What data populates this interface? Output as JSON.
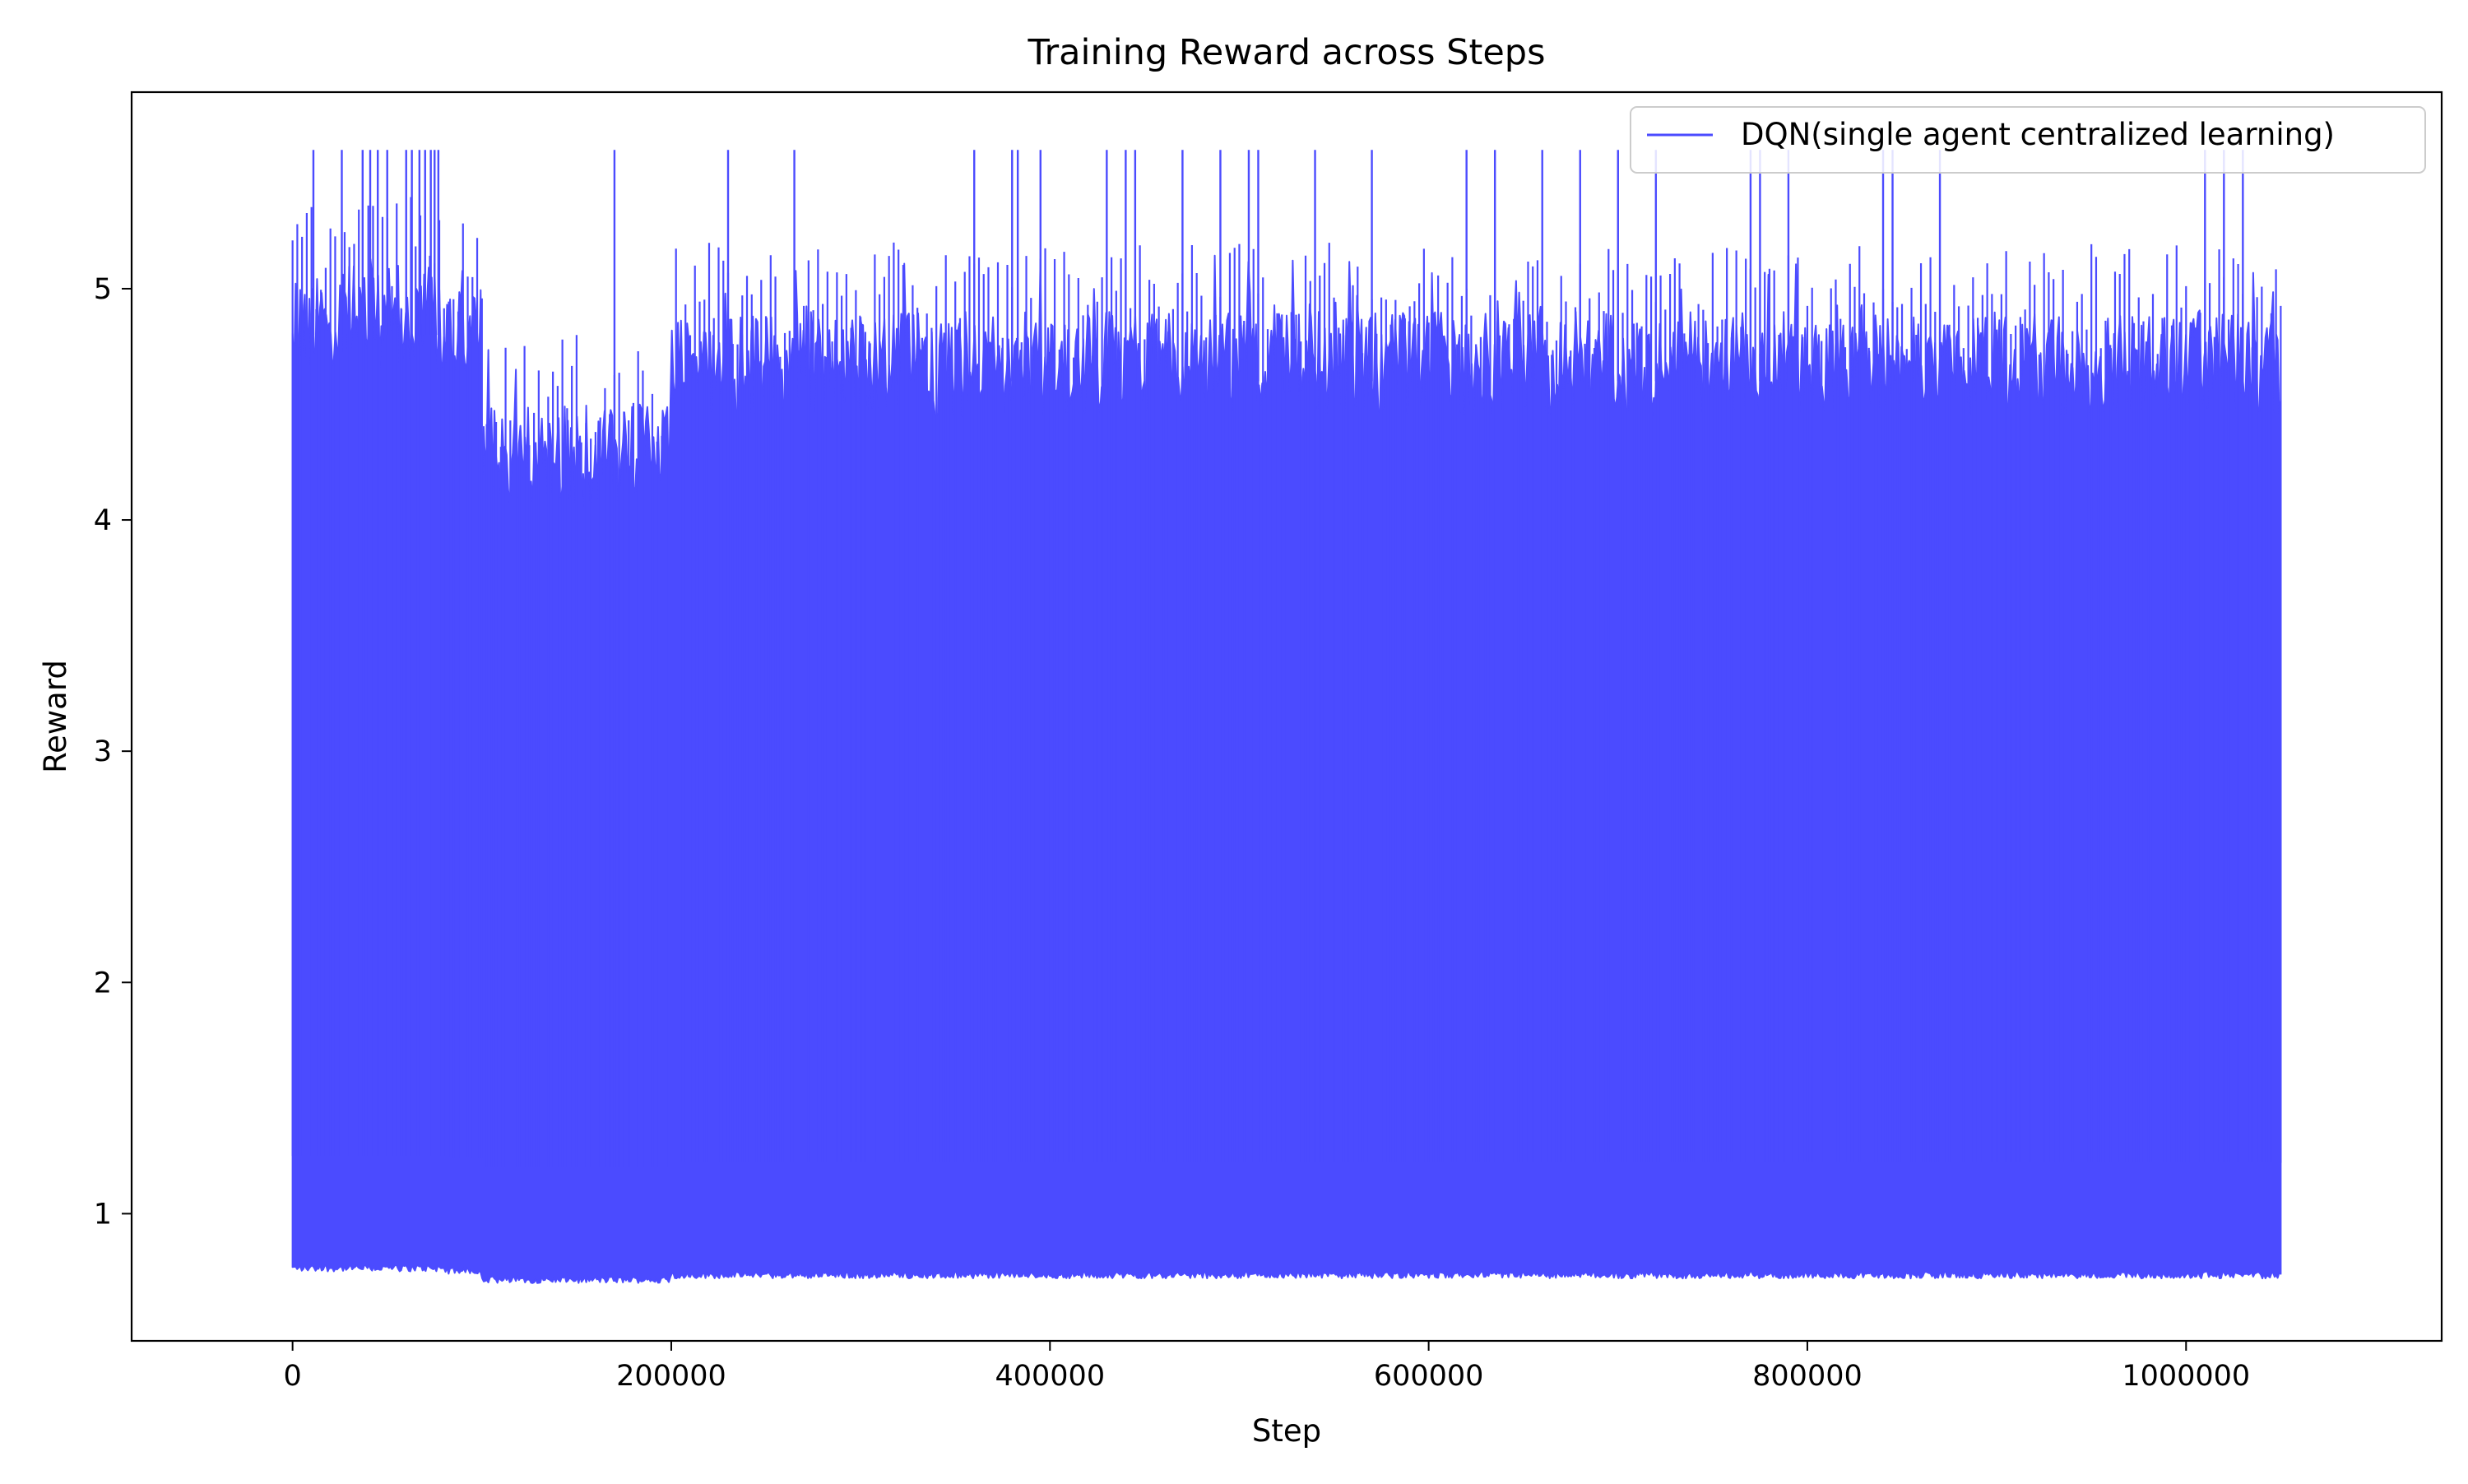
{
  "chart_data": {
    "type": "line",
    "title": "Training Reward across Steps",
    "xlabel": "Step",
    "ylabel": "Reward",
    "xlim": [
      -85000,
      1135000
    ],
    "ylim": [
      0.45,
      5.85
    ],
    "x_ticks": [
      0,
      200000,
      400000,
      600000,
      800000,
      1000000
    ],
    "x_tick_labels": [
      "0",
      "200000",
      "400000",
      "600000",
      "800000",
      "1000000"
    ],
    "y_ticks": [
      1,
      2,
      3,
      4,
      5
    ],
    "y_tick_labels": [
      "1",
      "2",
      "3",
      "4",
      "5"
    ],
    "grid": false,
    "legend_position": "top-right",
    "series": [
      {
        "name": "DQN(single agent centralized learning)",
        "color": "#4b4bff",
        "x_range": [
          0,
          1050000
        ],
        "band_segments": [
          {
            "x": [
              0,
              80000
            ],
            "lower": 0.75,
            "upper_typical": 5.1,
            "peak": 5.6
          },
          {
            "x": [
              80000,
              100000
            ],
            "lower": 0.74,
            "upper_typical": 5.0,
            "peak": 5.33
          },
          {
            "x": [
              100000,
              200000
            ],
            "lower": 0.7,
            "upper_typical": 4.5,
            "peak": 5.6
          },
          {
            "x": [
              200000,
              1050000
            ],
            "lower": 0.72,
            "upper_typical": 4.9,
            "peak": 5.6
          }
        ],
        "peak_steps": [
          11000,
          26000,
          37000,
          41000,
          45000,
          50000,
          60000,
          63000,
          67000,
          70000,
          73000,
          75000,
          77000,
          170000,
          230000,
          265000,
          360000,
          380000,
          383000,
          395000,
          430000,
          440000,
          445000,
          470000,
          490000,
          505000,
          510000,
          540000,
          570000,
          620000,
          635000,
          660000,
          680000,
          700000,
          720000,
          770000,
          775000,
          790000,
          840000,
          845000,
          870000,
          1010000,
          1020000,
          1030000
        ]
      }
    ]
  }
}
